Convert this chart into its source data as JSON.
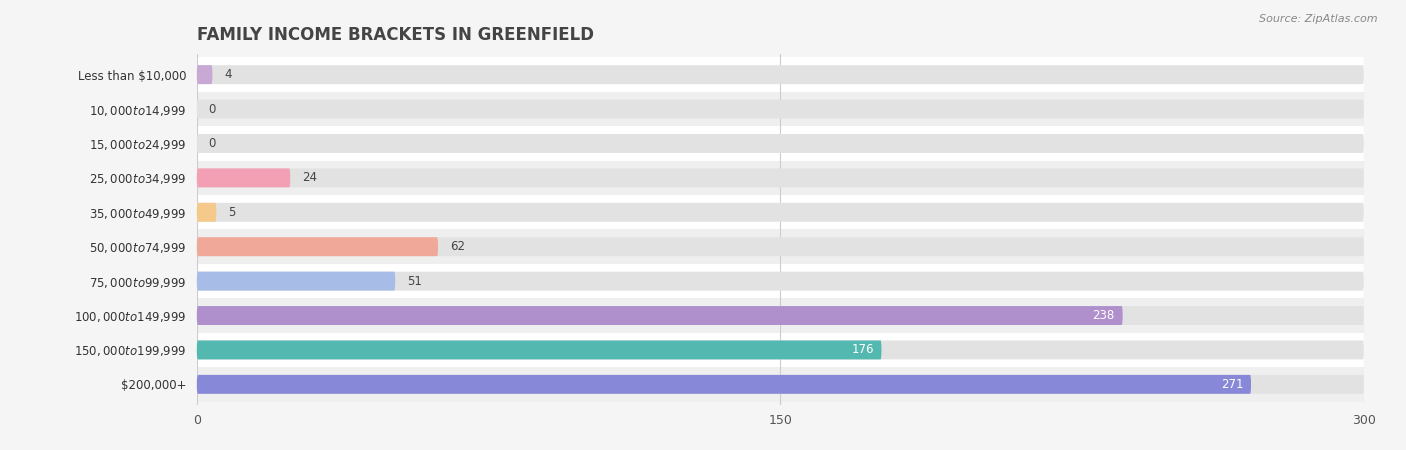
{
  "title": "FAMILY INCOME BRACKETS IN GREENFIELD",
  "source": "Source: ZipAtlas.com",
  "categories": [
    "Less than $10,000",
    "$10,000 to $14,999",
    "$15,000 to $24,999",
    "$25,000 to $34,999",
    "$35,000 to $49,999",
    "$50,000 to $74,999",
    "$75,000 to $99,999",
    "$100,000 to $149,999",
    "$150,000 to $199,999",
    "$200,000+"
  ],
  "values": [
    4,
    0,
    0,
    24,
    5,
    62,
    51,
    238,
    176,
    271
  ],
  "bar_colors": [
    "#c8a8d4",
    "#72c4bc",
    "#a8a8e0",
    "#f4a0b4",
    "#f5c98a",
    "#f0a898",
    "#a8bce8",
    "#b090cc",
    "#52b8b0",
    "#8888d8"
  ],
  "xlim": [
    0,
    300
  ],
  "xticks": [
    0,
    150,
    300
  ],
  "bg_color": "#f5f5f5",
  "row_colors": [
    "#ffffff",
    "#efefef"
  ],
  "bar_bg_color": "#e2e2e2",
  "title_fontsize": 12,
  "label_fontsize": 8.5,
  "value_fontsize": 8.5,
  "bar_height": 0.55
}
